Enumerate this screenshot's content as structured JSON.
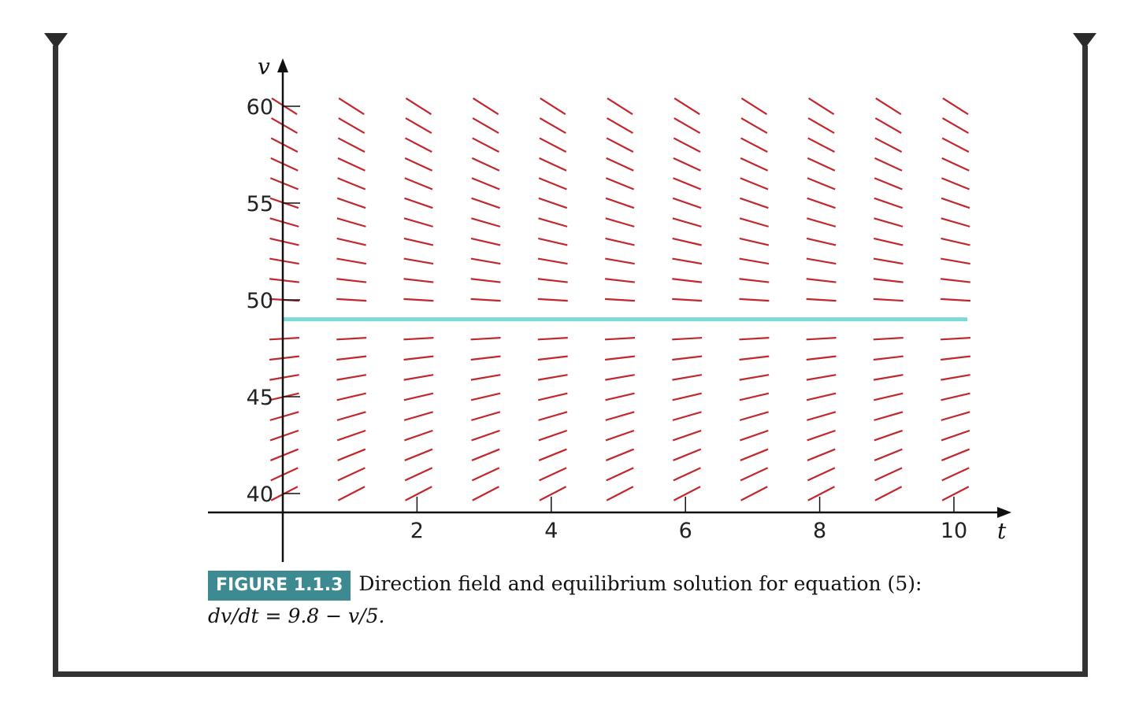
{
  "figure": {
    "label": "FIGURE 1.1.3",
    "caption": "Direction field and equilibrium solution for equation (5):",
    "equation": "dv/dt = 9.8 − v/5."
  },
  "colors": {
    "slope_segments": "#c1272d",
    "equilibrium": "#7dd8d8",
    "axes": "#111111",
    "frame": "#333333",
    "badge": "#3e8a93"
  },
  "chart_data": {
    "type": "direction_field",
    "equation": "dv/dt = 9.8 - v/5",
    "xlabel": "t",
    "ylabel": "v",
    "xlim": [
      0,
      10
    ],
    "ylim": [
      40,
      60
    ],
    "x_ticks": [
      2,
      4,
      6,
      8,
      10
    ],
    "y_ticks": [
      40,
      45,
      50,
      55,
      60
    ],
    "field_t": [
      0,
      1,
      2,
      3,
      4,
      5,
      6,
      7,
      8,
      9,
      10
    ],
    "field_v": [
      40,
      41,
      42,
      43,
      44,
      45,
      46,
      47,
      48,
      50,
      51,
      52,
      53,
      54,
      55,
      56,
      57,
      58,
      59,
      60
    ],
    "equilibrium": {
      "v": 49,
      "t_range": [
        0,
        10.2
      ]
    },
    "grid": false
  }
}
